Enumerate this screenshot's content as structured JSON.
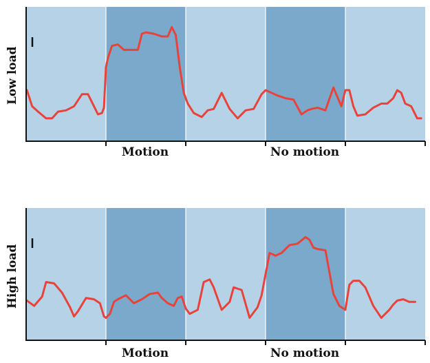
{
  "colors": {
    "baseline_band": "#b6d2e6",
    "stimulus_band": "#7aa9cb",
    "band_divider": "#ffffff",
    "trace": "#e8433a",
    "axis": "#111111",
    "scale_bar": "#111111"
  },
  "chart_data": [
    {
      "type": "line",
      "ylabel": "Low load",
      "xlabel": "",
      "xlim": [
        0,
        100
      ],
      "bands": [
        {
          "start": 0,
          "end": 20,
          "shade": "baseline"
        },
        {
          "start": 20,
          "end": 40,
          "shade": "stimulus",
          "label": "Motion"
        },
        {
          "start": 40,
          "end": 60,
          "shade": "baseline"
        },
        {
          "start": 60,
          "end": 80,
          "shade": "stimulus",
          "label": "No motion"
        },
        {
          "start": 80,
          "end": 100,
          "shade": "baseline"
        }
      ],
      "scale_bar": true,
      "series": [
        {
          "x": [
            0.2,
            1.5,
            3,
            5,
            6.5,
            8,
            10,
            12,
            14,
            15.5,
            17,
            18,
            19,
            19.5,
            20,
            20.5,
            21.5,
            23,
            24.5,
            26,
            28,
            29,
            30,
            32,
            34,
            35.5,
            36.5,
            37.5,
            38.5,
            39.5,
            40.5,
            42,
            44,
            45.5,
            47,
            49,
            51,
            53,
            55,
            57,
            59,
            60,
            61.5,
            63,
            65,
            67,
            69,
            70.5,
            71.5,
            73,
            75,
            77,
            79,
            80,
            81,
            82,
            83,
            85,
            87,
            89,
            90.5,
            92,
            93,
            94,
            95,
            96.5,
            98,
            99
          ],
          "y": [
            38,
            26,
            22,
            17,
            17,
            22,
            23,
            26,
            35,
            35,
            26,
            20,
            21,
            25,
            55,
            62,
            71,
            72,
            68,
            68,
            68,
            80,
            81,
            80,
            78,
            78,
            85,
            79,
            55,
            36,
            28,
            21,
            18,
            23,
            24,
            36,
            24,
            17,
            23,
            24,
            35,
            38,
            36,
            34,
            32,
            31,
            20,
            23,
            24,
            25,
            23,
            40,
            26,
            38,
            38,
            26,
            19,
            20,
            25,
            28,
            28,
            32,
            38,
            36,
            28,
            26,
            17,
            17
          ]
        }
      ]
    },
    {
      "type": "line",
      "ylabel": "High load",
      "xlabel": "",
      "xlim": [
        0,
        100
      ],
      "bands": [
        {
          "start": 0,
          "end": 20,
          "shade": "baseline"
        },
        {
          "start": 20,
          "end": 40,
          "shade": "stimulus",
          "label": "Motion"
        },
        {
          "start": 40,
          "end": 60,
          "shade": "baseline"
        },
        {
          "start": 60,
          "end": 80,
          "shade": "stimulus",
          "label": "No motion"
        },
        {
          "start": 80,
          "end": 100,
          "shade": "baseline"
        }
      ],
      "scale_bar": true,
      "series": [
        {
          "x": [
            0.2,
            2,
            4,
            5,
            7,
            9,
            11,
            12,
            13,
            15,
            17,
            18.5,
            19.5,
            20,
            21,
            22,
            23,
            25,
            27,
            29,
            31,
            33,
            34,
            35.5,
            37,
            38,
            39,
            40,
            41,
            43,
            44.5,
            46,
            47,
            49,
            51,
            52,
            54,
            56,
            58,
            59,
            60,
            61,
            62.5,
            64,
            66,
            68,
            70,
            71,
            72,
            73,
            75,
            77,
            78.5,
            80,
            81,
            82,
            83.5,
            85,
            87,
            89,
            91,
            92,
            93,
            94.5,
            96,
            97.5
          ],
          "y": [
            30,
            26,
            33,
            44,
            43,
            36,
            25,
            18,
            22,
            32,
            31,
            28,
            18,
            17,
            20,
            29,
            31,
            34,
            28,
            31,
            35,
            36,
            32,
            28,
            26,
            32,
            33,
            24,
            20,
            23,
            44,
            46,
            40,
            23,
            29,
            40,
            38,
            17,
            25,
            34,
            50,
            66,
            64,
            66,
            72,
            73,
            78,
            76,
            70,
            69,
            68,
            35,
            26,
            23,
            42,
            45,
            45,
            40,
            26,
            17,
            23,
            27,
            30,
            31,
            29,
            29
          ]
        }
      ]
    }
  ]
}
